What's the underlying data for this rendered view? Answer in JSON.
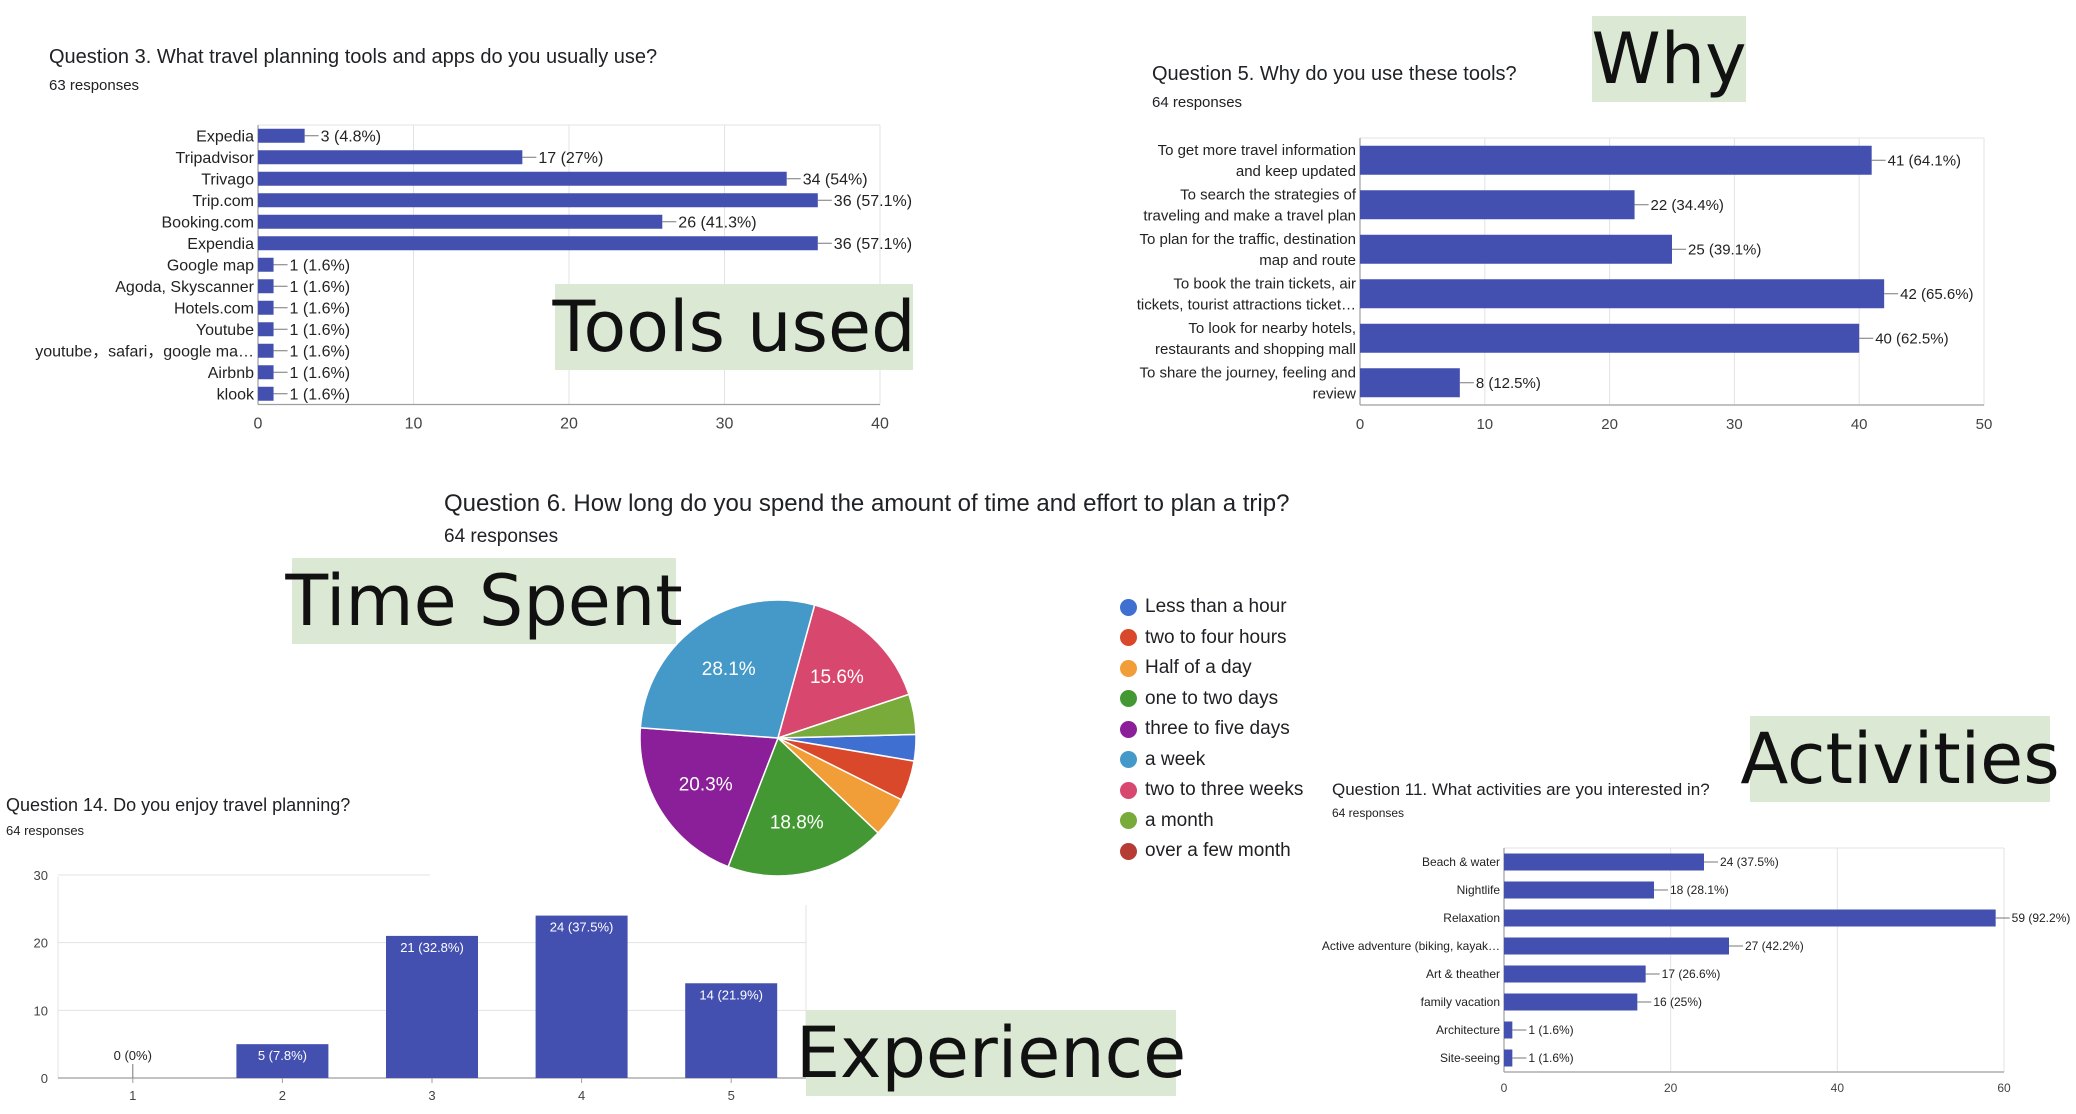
{
  "colors": {
    "bar": "#4350b0",
    "tag_bg": "#dbe8d4",
    "grid": "#e3e3e3",
    "axis": "#9e9e9e"
  },
  "tags": {
    "tools": "Tools used",
    "why": "Why",
    "time": "Time Spent",
    "activities": "Activities",
    "experience": "Experience"
  },
  "chart_data": [
    {
      "id": "q3",
      "type": "bar",
      "orientation": "horizontal",
      "title": "Question 3. What travel planning tools and apps do you usually use?",
      "subtitle": "63 responses",
      "categories": [
        "Expedia",
        "Tripadvisor",
        "Trivago",
        "Trip.com",
        "Booking.com",
        "Expendia",
        "Google map",
        "Agoda, Skyscanner",
        "Hotels.com",
        "Youtube",
        "youtube，safari，google ma…",
        "Airbnb",
        "klook"
      ],
      "values": [
        3,
        17,
        34,
        36,
        26,
        36,
        1,
        1,
        1,
        1,
        1,
        1,
        1
      ],
      "data_labels": [
        "3 (4.8%)",
        "17 (27%)",
        "34 (54%)",
        "36 (57.1%)",
        "26 (41.3%)",
        "36 (57.1%)",
        "1 (1.6%)",
        "1 (1.6%)",
        "1 (1.6%)",
        "1 (1.6%)",
        "1 (1.6%)",
        "1 (1.6%)",
        "1 (1.6%)"
      ],
      "xlim": [
        0,
        40
      ],
      "xticks": [
        "0",
        "10",
        "20",
        "30",
        "40"
      ],
      "grid": true
    },
    {
      "id": "q5",
      "type": "bar",
      "orientation": "horizontal",
      "title": "Question 5. Why do you use these tools?",
      "subtitle": "64 responses",
      "categories": [
        [
          "To get more travel information",
          "and keep updated"
        ],
        [
          "To search the strategies of",
          "traveling and make a travel plan"
        ],
        [
          "To plan for the traffic, destination",
          "map and route"
        ],
        [
          "To book the train tickets, air",
          "tickets, tourist attractions ticket…"
        ],
        [
          "To look for nearby hotels,",
          "restaurants and shopping mall"
        ],
        [
          "To share the journey, feeling and",
          "review"
        ]
      ],
      "values": [
        41,
        22,
        25,
        42,
        40,
        8
      ],
      "data_labels": [
        "41 (64.1%)",
        "22 (34.4%)",
        "25 (39.1%)",
        "42 (65.6%)",
        "40 (62.5%)",
        "8 (12.5%)"
      ],
      "xlim": [
        0,
        50
      ],
      "xticks": [
        "0",
        "10",
        "20",
        "30",
        "40",
        "50"
      ],
      "grid": true
    },
    {
      "id": "q6",
      "type": "pie",
      "title": "Question 6. How long do you spend the amount of time and effort to plan a trip?",
      "subtitle": "64 responses",
      "legend_position": "right",
      "slices": [
        {
          "name": "Less than a hour",
          "value": 3.1,
          "color": "#3e6fd1"
        },
        {
          "name": "two to four hours",
          "value": 4.7,
          "color": "#d9482b"
        },
        {
          "name": "Half of a day",
          "value": 4.7,
          "color": "#f29e38"
        },
        {
          "name": "one to two days",
          "value": 18.8,
          "color": "#449834",
          "label": "18.8%"
        },
        {
          "name": "three to five days",
          "value": 20.3,
          "color": "#8b1e99",
          "label": "20.3%"
        },
        {
          "name": "a week",
          "value": 28.1,
          "color": "#4599c8",
          "label": "28.1%"
        },
        {
          "name": "two to three weeks",
          "value": 15.6,
          "color": "#d8486e",
          "label": "15.6%"
        },
        {
          "name": "a month",
          "value": 4.7,
          "color": "#78ab3a"
        },
        {
          "name": "over a few month",
          "value": 0,
          "color": "#b73b35"
        }
      ]
    },
    {
      "id": "q14",
      "type": "bar",
      "orientation": "vertical",
      "title": "Question 14. Do you enjoy travel planning?",
      "subtitle": "64 responses",
      "categories": [
        "1",
        "2",
        "3",
        "4",
        "5"
      ],
      "values": [
        0,
        5,
        21,
        24,
        14
      ],
      "data_labels": [
        "0 (0%)",
        "5 (7.8%)",
        "21 (32.8%)",
        "24 (37.5%)",
        "14 (21.9%)"
      ],
      "ylim": [
        0,
        30
      ],
      "yticks": [
        "0",
        "10",
        "20",
        "30"
      ],
      "grid": true
    },
    {
      "id": "q11",
      "type": "bar",
      "orientation": "horizontal",
      "title": "Question 11. What activities are you interested in?",
      "subtitle": "64 responses",
      "categories": [
        "Beach & water",
        "Nightlife",
        "Relaxation",
        "Active adventure (biking, kayak…",
        "Art & theather",
        "family vacation",
        "Architecture",
        "Site-seeing"
      ],
      "values": [
        24,
        18,
        59,
        27,
        17,
        16,
        1,
        1
      ],
      "data_labels": [
        "24 (37.5%)",
        "18 (28.1%)",
        "59 (92.2%)",
        "27 (42.2%)",
        "17 (26.6%)",
        "16 (25%)",
        "1 (1.6%)",
        "1 (1.6%)"
      ],
      "xlim": [
        0,
        60
      ],
      "xticks": [
        "0",
        "20",
        "40",
        "60"
      ],
      "grid": true
    }
  ]
}
